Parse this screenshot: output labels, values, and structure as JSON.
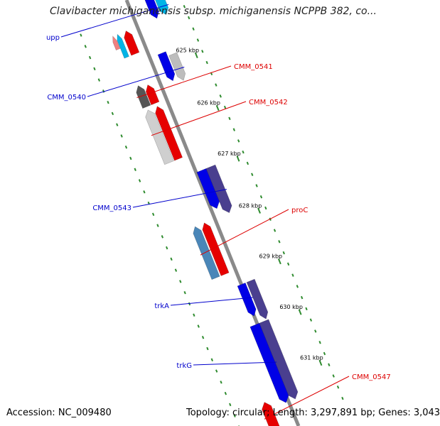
{
  "title": "Clavibacter michiganensis subsp. michiganensis NCPPB 382, co...",
  "footer": {
    "accession": "Accession: NC_009480",
    "stats": "Topology: circular; Length: 3,297,891 bp; Genes: 3,043"
  },
  "colors": {
    "backbone": "#8a8a8a",
    "ticks": "#2e8b2e",
    "forward_label": "#0000cc",
    "reverse_label": "#dd0000"
  },
  "ticks": [
    "625 kbp",
    "626 kbp",
    "627 kbp",
    "628 kbp",
    "629 kbp",
    "630 kbp",
    "631 kbp"
  ],
  "genes": [
    {
      "name": "upp",
      "strand": "forward",
      "color": "#00b4e6",
      "labeled": true
    },
    {
      "name": "",
      "strand": "forward",
      "color": "#0000e6",
      "labeled": false
    },
    {
      "name": "",
      "strand": "reverse",
      "color": "#e60000",
      "labeled": false
    },
    {
      "name": "",
      "strand": "reverse",
      "color": "#00b4e6",
      "labeled": false
    },
    {
      "name": "",
      "strand": "reverse",
      "color": "#f08080",
      "labeled": false
    },
    {
      "name": "CMM_0540",
      "strand": "forward",
      "color": "#bdbdbd",
      "labeled": true
    },
    {
      "name": "",
      "strand": "forward",
      "color": "#0000e6",
      "labeled": false
    },
    {
      "name": "CMM_0541",
      "strand": "reverse",
      "color": "#555555",
      "labeled": true
    },
    {
      "name": "",
      "strand": "reverse",
      "color": "#e60000",
      "labeled": false
    },
    {
      "name": "CMM_0542",
      "strand": "reverse",
      "color": "#cfcfcf",
      "labeled": true
    },
    {
      "name": "",
      "strand": "reverse",
      "color": "#e60000",
      "labeled": false
    },
    {
      "name": "CMM_0543",
      "strand": "forward",
      "color": "#4a3f8f",
      "labeled": true
    },
    {
      "name": "",
      "strand": "forward",
      "color": "#0000e6",
      "labeled": false
    },
    {
      "name": "proC",
      "strand": "reverse",
      "color": "#4a86b8",
      "labeled": true
    },
    {
      "name": "",
      "strand": "reverse",
      "color": "#e60000",
      "labeled": false
    },
    {
      "name": "",
      "strand": "forward",
      "color": "#4a3f8f",
      "labeled": false
    },
    {
      "name": "trkA",
      "strand": "forward",
      "color": "#0000e6",
      "labeled": true
    },
    {
      "name": "",
      "strand": "forward",
      "color": "#4a3f8f",
      "labeled": false
    },
    {
      "name": "trkG",
      "strand": "forward",
      "color": "#0000e6",
      "labeled": true
    },
    {
      "name": "CMM_0547",
      "strand": "reverse",
      "color": "#e60000",
      "labeled": true
    }
  ]
}
